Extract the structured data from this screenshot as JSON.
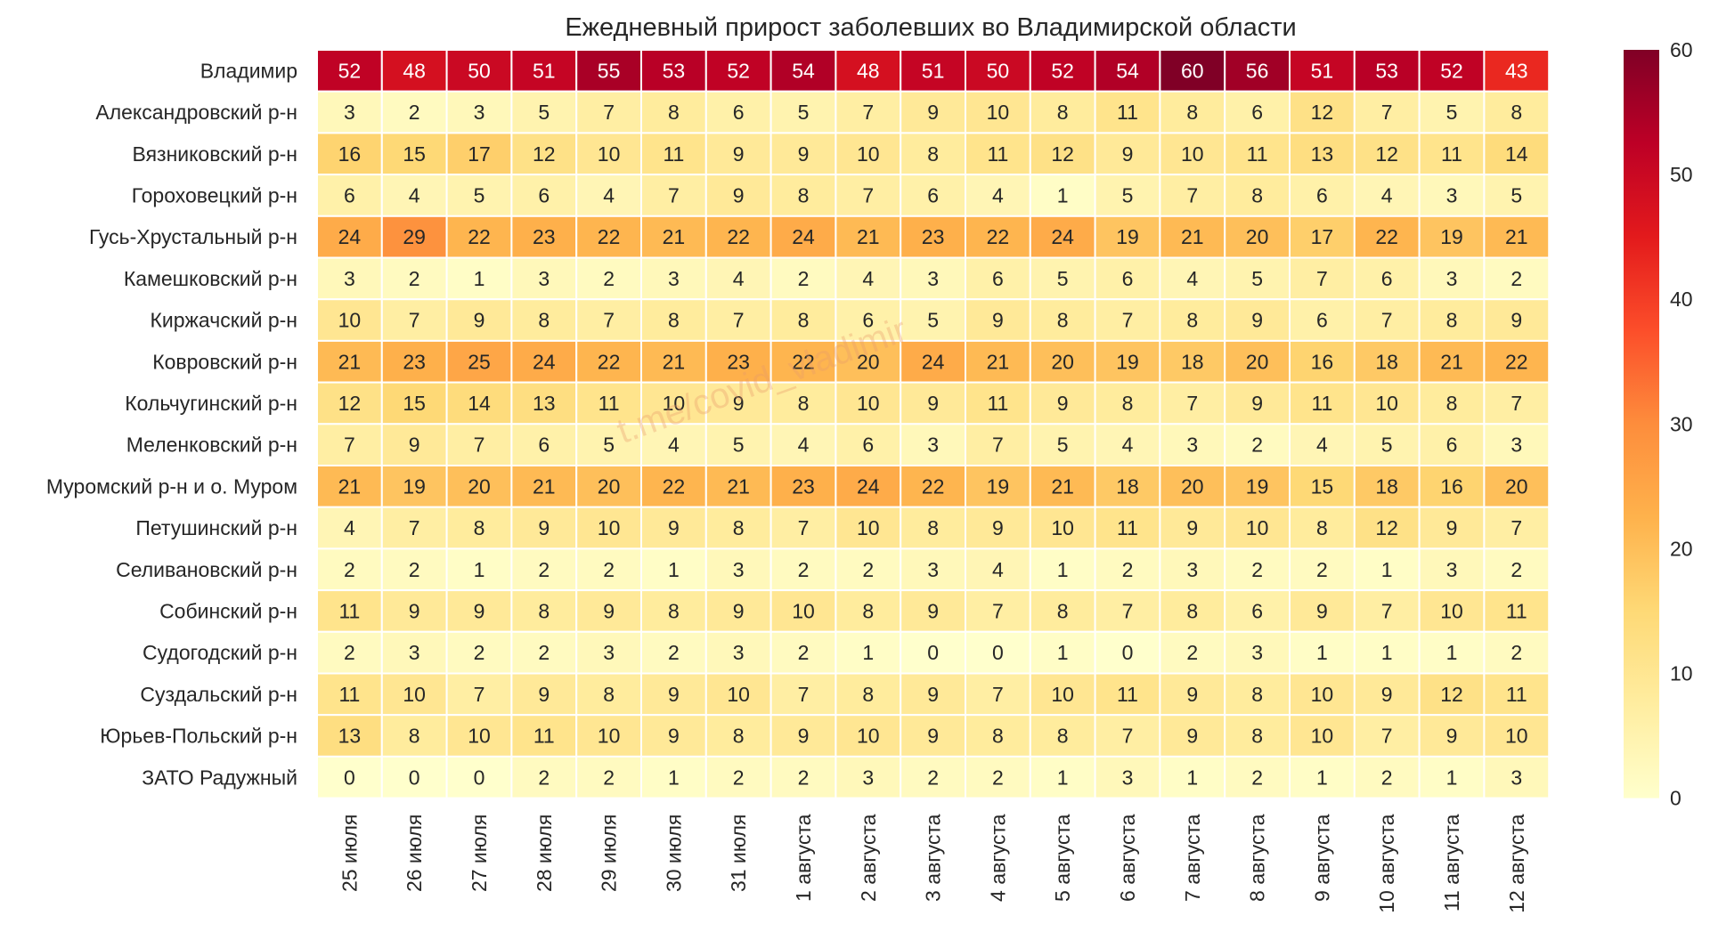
{
  "chart_data": {
    "type": "heatmap",
    "title": "Ежедневный прирост заболевших во Владимирской области",
    "watermark": "t.me/covid_vladimir",
    "rows": [
      "Владимир",
      "Александровский р-н",
      "Вязниковский р-н",
      "Гороховецкий р-н",
      "Гусь-Хрустальный р-н",
      "Камешковский р-н",
      "Киржачский р-н",
      "Ковровский р-н",
      "Кольчугинский р-н",
      "Меленковский р-н",
      "Муромский р-н и о. Муром",
      "Петушинский р-н",
      "Селивановский р-н",
      "Собинский р-н",
      "Судогодский р-н",
      "Суздальский р-н",
      "Юрьев-Польский р-н",
      "ЗАТО Радужный"
    ],
    "columns": [
      "25 июля",
      "26 июля",
      "27 июля",
      "28 июля",
      "29 июля",
      "30 июля",
      "31 июля",
      "1 августа",
      "2 августа",
      "3 августа",
      "4 августа",
      "5 августа",
      "6 августа",
      "7 августа",
      "8 августа",
      "9 августа",
      "10 августа",
      "11 августа",
      "12 августа"
    ],
    "values": [
      [
        52,
        48,
        50,
        51,
        55,
        53,
        52,
        54,
        48,
        51,
        50,
        52,
        54,
        60,
        56,
        51,
        53,
        52,
        43
      ],
      [
        3,
        2,
        3,
        5,
        7,
        8,
        6,
        5,
        7,
        9,
        10,
        8,
        11,
        8,
        6,
        12,
        7,
        5,
        8
      ],
      [
        16,
        15,
        17,
        12,
        10,
        11,
        9,
        9,
        10,
        8,
        11,
        12,
        9,
        10,
        11,
        13,
        12,
        11,
        14
      ],
      [
        6,
        4,
        5,
        6,
        4,
        7,
        9,
        8,
        7,
        6,
        4,
        1,
        5,
        7,
        8,
        6,
        4,
        3,
        5
      ],
      [
        24,
        29,
        22,
        23,
        22,
        21,
        22,
        24,
        21,
        23,
        22,
        24,
        19,
        21,
        20,
        17,
        22,
        19,
        21
      ],
      [
        3,
        2,
        1,
        3,
        2,
        3,
        4,
        2,
        4,
        3,
        6,
        5,
        6,
        4,
        5,
        7,
        6,
        3,
        2
      ],
      [
        10,
        7,
        9,
        8,
        7,
        8,
        7,
        8,
        6,
        5,
        9,
        8,
        7,
        8,
        9,
        6,
        7,
        8,
        9
      ],
      [
        21,
        23,
        25,
        24,
        22,
        21,
        23,
        22,
        20,
        24,
        21,
        20,
        19,
        18,
        20,
        16,
        18,
        21,
        22
      ],
      [
        12,
        15,
        14,
        13,
        11,
        10,
        9,
        8,
        10,
        9,
        11,
        9,
        8,
        7,
        9,
        11,
        10,
        8,
        7
      ],
      [
        7,
        9,
        7,
        6,
        5,
        4,
        5,
        4,
        6,
        3,
        7,
        5,
        4,
        3,
        2,
        4,
        5,
        6,
        3
      ],
      [
        21,
        19,
        20,
        21,
        20,
        22,
        21,
        23,
        24,
        22,
        19,
        21,
        18,
        20,
        19,
        15,
        18,
        16,
        20
      ],
      [
        4,
        7,
        8,
        9,
        10,
        9,
        8,
        7,
        10,
        8,
        9,
        10,
        11,
        9,
        10,
        8,
        12,
        9,
        7
      ],
      [
        2,
        2,
        1,
        2,
        2,
        1,
        3,
        2,
        2,
        3,
        4,
        1,
        2,
        3,
        2,
        2,
        1,
        3,
        2
      ],
      [
        11,
        9,
        9,
        8,
        9,
        8,
        9,
        10,
        8,
        9,
        7,
        8,
        7,
        8,
        6,
        9,
        7,
        10,
        11
      ],
      [
        2,
        3,
        2,
        2,
        3,
        2,
        3,
        2,
        1,
        0,
        0,
        1,
        0,
        2,
        3,
        1,
        1,
        1,
        2
      ],
      [
        11,
        10,
        7,
        9,
        8,
        9,
        10,
        7,
        8,
        9,
        7,
        10,
        11,
        9,
        8,
        10,
        9,
        12,
        11
      ],
      [
        13,
        8,
        10,
        11,
        10,
        9,
        8,
        9,
        10,
        9,
        8,
        8,
        7,
        9,
        8,
        10,
        7,
        9,
        10
      ],
      [
        0,
        0,
        0,
        2,
        2,
        1,
        2,
        2,
        3,
        2,
        2,
        1,
        3,
        1,
        2,
        1,
        2,
        1,
        3
      ]
    ],
    "colorbar": {
      "min": 0,
      "max": 60,
      "ticks": [
        0,
        10,
        20,
        30,
        40,
        50,
        60
      ],
      "colormap": [
        "#ffffcc",
        "#ffeda0",
        "#fed976",
        "#feb24c",
        "#fd8d3c",
        "#fc4e2a",
        "#e31a1c",
        "#bd0026",
        "#800026"
      ]
    },
    "xlabel": "",
    "ylabel": "",
    "grid": false,
    "colorbar_placement": "right"
  }
}
